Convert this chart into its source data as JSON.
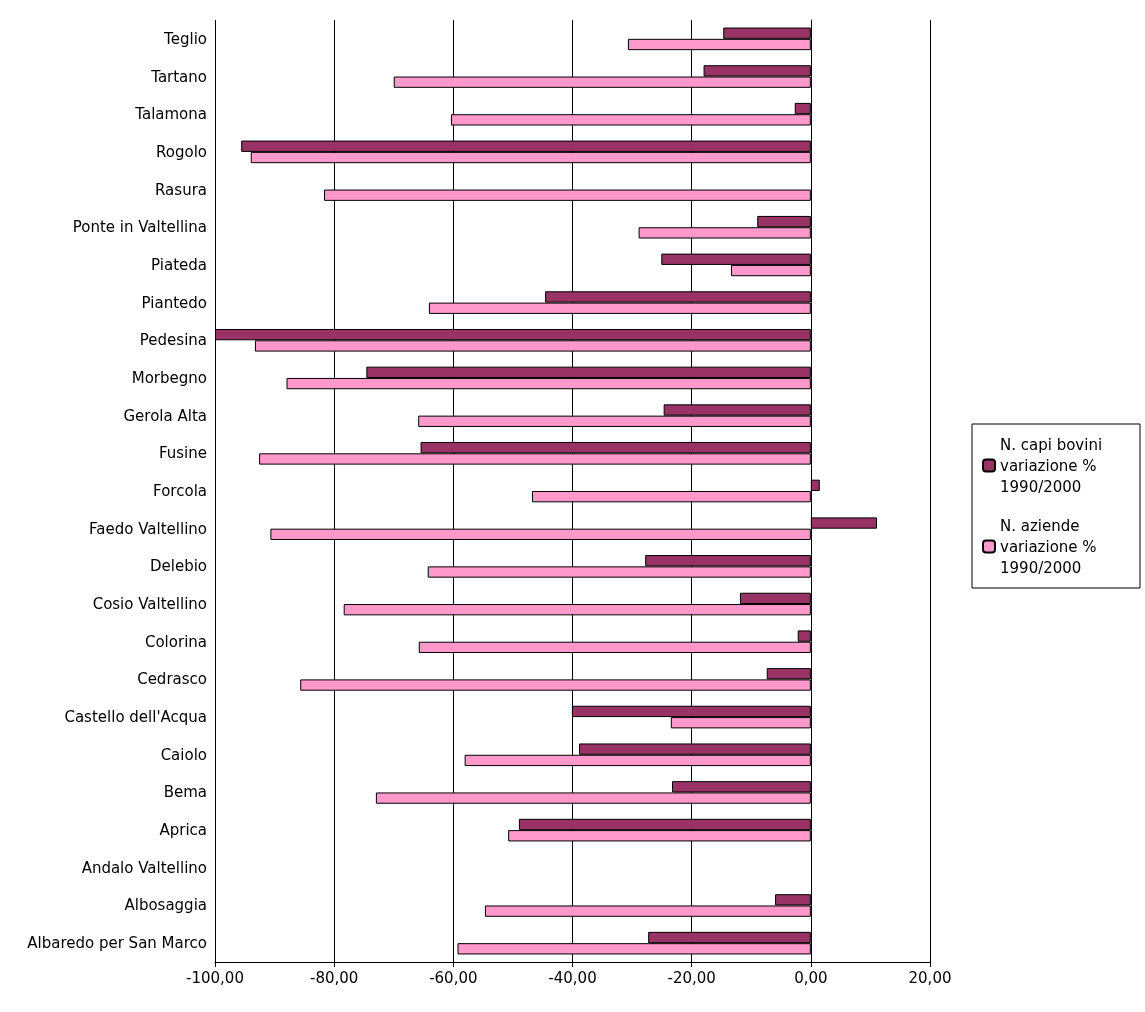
{
  "chart_data": {
    "type": "bar",
    "orientation": "horizontal",
    "categories": [
      "Teglio",
      "Tartano",
      "Talamona",
      "Rogolo",
      "Rasura",
      "Ponte in Valtellina",
      "Piateda",
      "Piantedo",
      "Pedesina",
      "Morbegno",
      "Gerola Alta",
      "Fusine",
      "Forcola",
      "Faedo Valtellino",
      "Delebio",
      "Cosio Valtellino",
      "Colorina",
      "Cedrasco",
      "Castello dell'Acqua",
      "Caiolo",
      "Bema",
      "Aprica",
      "Andalo Valtellino",
      "Albosaggia",
      "Albaredo per San Marco"
    ],
    "series": [
      {
        "name": "N. capi bovini variazione % 1990/2000",
        "color": "#993366",
        "values": [
          -14.7,
          -18.0,
          -2.7,
          -95.6,
          null,
          -9.0,
          -25.1,
          -44.6,
          -100,
          -74.6,
          -24.7,
          -65.5,
          1.5,
          11.1,
          -27.8,
          -11.9,
          -2.2,
          -7.4,
          -40.1,
          -38.9,
          -23.3,
          -49.0,
          null,
          -6.0,
          -27.3
        ]
      },
      {
        "name": "N. aziende variazione % 1990/2000",
        "color": "#ff99cc",
        "values": [
          -30.7,
          -70.0,
          -60.4,
          -94.0,
          -81.7,
          -28.9,
          -13.4,
          -64.1,
          -93.3,
          -88.0,
          -65.9,
          -92.6,
          -46.8,
          -90.7,
          -64.3,
          -78.4,
          -65.8,
          -85.7,
          -23.5,
          -58.1,
          -73.0,
          -50.8,
          null,
          -54.7,
          -59.3
        ]
      }
    ],
    "xlim": [
      -100,
      20
    ],
    "xticks": [
      {
        "value": -100,
        "label": "-100,00"
      },
      {
        "value": -80,
        "label": "-80,00"
      },
      {
        "value": -60,
        "label": "-60,00"
      },
      {
        "value": -40,
        "label": "-40,00"
      },
      {
        "value": -20,
        "label": "-20,00"
      },
      {
        "value": 0,
        "label": "0,00"
      },
      {
        "value": 20,
        "label": "20,00"
      }
    ],
    "grid": "x",
    "legend": "right"
  }
}
